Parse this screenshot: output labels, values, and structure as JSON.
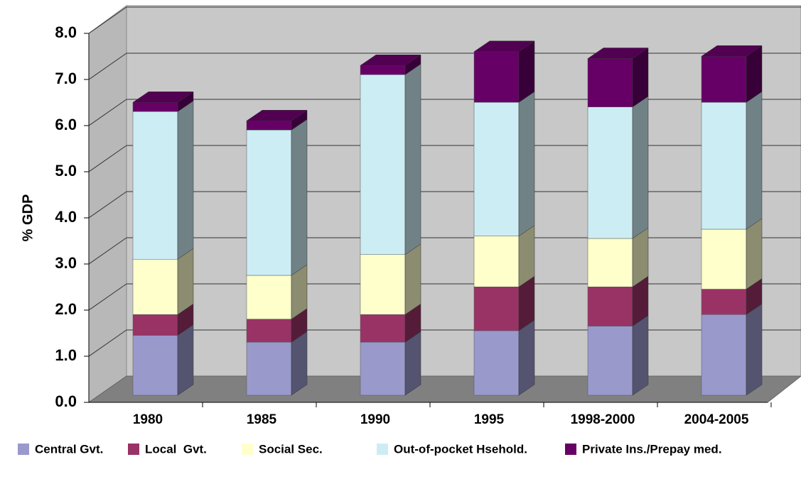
{
  "chart_data": {
    "type": "bar3d_stacked",
    "ylabel": "% GDP",
    "categories": [
      "1980",
      "1985",
      "1990",
      "1995",
      "1998-2000",
      "2004-2005"
    ],
    "series": [
      {
        "name": "Central Gvt.",
        "color": "#9999cc",
        "values": [
          1.3,
          1.15,
          1.15,
          1.4,
          1.5,
          1.75
        ]
      },
      {
        "name": "Local  Gvt.",
        "color": "#993366",
        "values": [
          0.45,
          0.5,
          0.6,
          0.95,
          0.85,
          0.55
        ]
      },
      {
        "name": "Social Sec.",
        "color": "#ffffcc",
        "values": [
          1.2,
          0.95,
          1.3,
          1.1,
          1.05,
          1.3
        ]
      },
      {
        "name": "Out-of-pocket Hsehold.",
        "color": "#cdedf5",
        "values": [
          3.2,
          3.15,
          3.9,
          2.9,
          2.85,
          2.75
        ]
      },
      {
        "name": "Private Ins./Prepay med.",
        "color": "#660066",
        "values": [
          0.2,
          0.2,
          0.2,
          1.1,
          1.05,
          1.0
        ]
      }
    ],
    "ylim": [
      0,
      8
    ],
    "yticks": [
      {
        "value": 0,
        "label": "0.0"
      },
      {
        "value": 1,
        "label": "1.0"
      },
      {
        "value": 2,
        "label": "2.0"
      },
      {
        "value": 3,
        "label": "3.0"
      },
      {
        "value": 4,
        "label": "4.0"
      },
      {
        "value": 5,
        "label": "5.0"
      },
      {
        "value": 6,
        "label": "6.0"
      },
      {
        "value": 7,
        "label": "7.0"
      },
      {
        "value": 8,
        "label": "8.0"
      }
    ],
    "grid": true
  }
}
